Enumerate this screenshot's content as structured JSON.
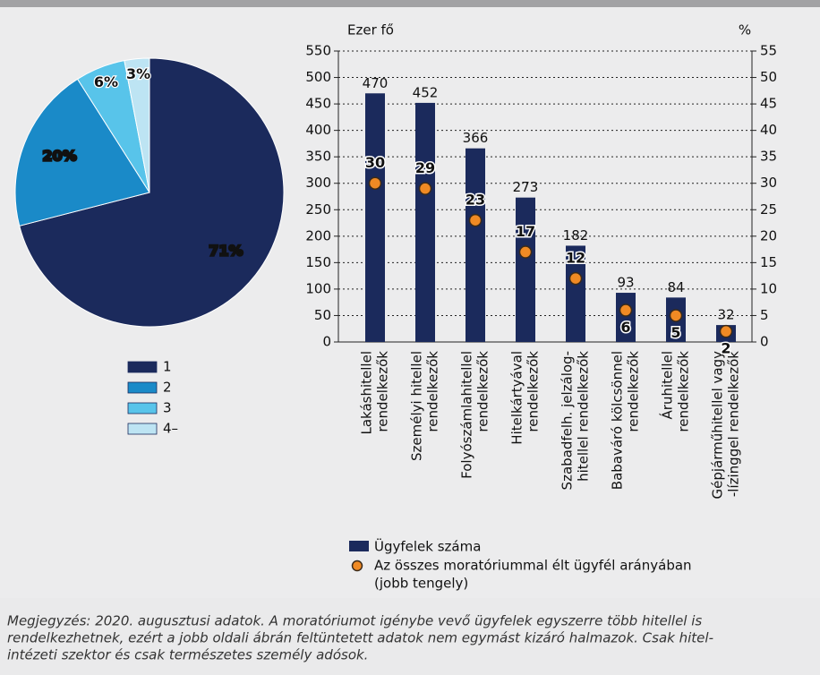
{
  "chart_data": [
    {
      "type": "pie",
      "labels": [
        "1",
        "2",
        "3",
        "4–"
      ],
      "values": [
        71,
        20,
        6,
        3
      ],
      "value_labels": [
        "71%",
        "20%",
        "6%",
        "3%"
      ],
      "colors": [
        "#1b2a5c",
        "#1a8ac8",
        "#58c4ea",
        "#bde4f3"
      ]
    },
    {
      "type": "bar",
      "y_label": "Ezer fő",
      "y2_label": "%",
      "categories": [
        [
          "Lakáshitellel",
          "rendelkezők"
        ],
        [
          "Személyi hitellel",
          "rendelkezők"
        ],
        [
          "Folyószámlahitellel",
          "rendelkezők"
        ],
        [
          "Hitelkártyával",
          "rendelkezők"
        ],
        [
          "Szabadfelh. jelzálog-",
          "hitellel rendelkezők"
        ],
        [
          "Babaváró kölcsönnel",
          "rendelkezők"
        ],
        [
          "Áruhitellel",
          "rendelkezők"
        ],
        [
          "Gépjárműhitellel vagy",
          "-lízinggel rendelkezők"
        ]
      ],
      "series": [
        {
          "name": [
            "Ügyfelek száma"
          ],
          "color": "#1b2a5c",
          "values": [
            470,
            452,
            366,
            273,
            182,
            93,
            84,
            32
          ]
        },
        {
          "name": [
            "Az összes moratóriummal élt ügyfél arányában",
            "(jobb tengely)"
          ],
          "color": "#f08a24",
          "axis": "y2",
          "values": [
            30,
            29,
            23,
            17,
            12,
            6,
            5,
            2
          ]
        }
      ],
      "ylim": [
        0,
        550
      ],
      "yticks": [
        0,
        50,
        100,
        150,
        200,
        250,
        300,
        350,
        400,
        450,
        500,
        550
      ],
      "y2lim": [
        0,
        55
      ],
      "y2ticks": [
        0,
        5,
        10,
        15,
        20,
        25,
        30,
        35,
        40,
        45,
        50,
        55
      ],
      "grid": true
    }
  ],
  "note": [
    "Megjegyzés: 2020. augusztusi adatok. A moratóriumot igénybe vevő ügyfelek egyszerre több hitellel is",
    "rendelkezhetnek, ezért a jobb oldali ábrán feltüntetett adatok nem egymást kizáró halmazok. Csak hitel-",
    "intézeti szektor és csak természetes személy adósok."
  ]
}
